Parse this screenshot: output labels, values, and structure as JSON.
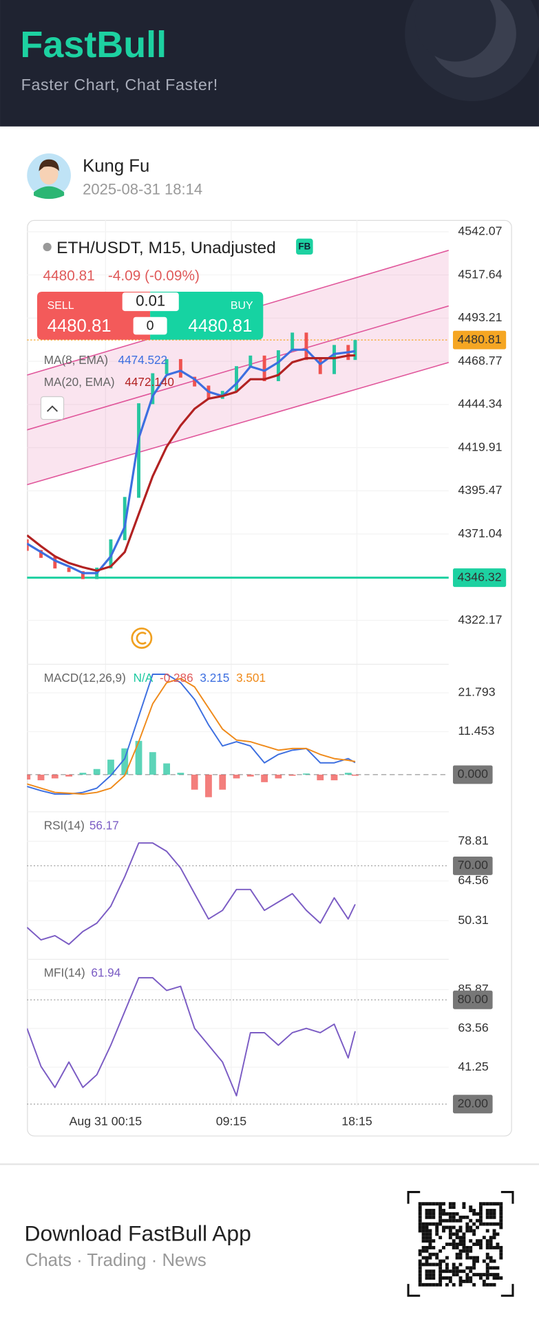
{
  "header": {
    "brand": "FastBull",
    "tagline": "Faster Chart, Chat Faster!"
  },
  "post": {
    "author": "Kung Fu",
    "time": "2025-08-31 18:14"
  },
  "time_axis": {
    "x": [
      0,
      4,
      8,
      12,
      16,
      20,
      24,
      28,
      32,
      36,
      40,
      44,
      48,
      52,
      56,
      60,
      64,
      68,
      72,
      76,
      80,
      84,
      88,
      92,
      94
    ],
    "xlim": [
      0,
      120.8
    ],
    "xticks": [
      {
        "value": 22.5,
        "label": "Aug 31 00:15"
      },
      {
        "value": 58.5,
        "label": "09:15"
      },
      {
        "value": 94.5,
        "label": "18:15"
      }
    ]
  },
  "chart_data": [
    {
      "type": "candlestick",
      "title": "ETH/USDT, M15, Unadjusted",
      "badge": "FB",
      "last_price": 4480.81,
      "change": "-4.09 (-0.09%)",
      "trade": {
        "sell_label": "SELL",
        "sell_price": 4480.81,
        "buy_label": "BUY",
        "buy_price": 4480.81,
        "lot": 0.01,
        "qty": 0
      },
      "up_color": "#26c6a0",
      "down_color": "#ef5350",
      "open": [
        4368,
        4362,
        4358,
        4352,
        4350,
        4346,
        4352,
        4368,
        4392,
        4445,
        4462,
        4470,
        4460,
        4455,
        4448,
        4452,
        4466,
        4472,
        4458,
        4475,
        4485,
        4470,
        4462,
        4478,
        4470
      ],
      "close": [
        4362,
        4358,
        4352,
        4350,
        4346,
        4352,
        4368,
        4392,
        4445,
        4462,
        4470,
        4460,
        4455,
        4448,
        4452,
        4466,
        4472,
        4458,
        4475,
        4485,
        4470,
        4462,
        4478,
        4470,
        4480.81
      ],
      "series": [
        {
          "name": "MA(8, EMA)",
          "legend_value": "4474.522",
          "color": "#3d6fe0",
          "values": [
            4365.6,
            4360.8,
            4356.0,
            4352.7,
            4348.9,
            4348.9,
            4358.4,
            4375.1,
            4425.2,
            4449.1,
            4461.0,
            4463.4,
            4458.6,
            4451.5,
            4449.1,
            4456.2,
            4465.8,
            4463.4,
            4468.2,
            4475.3,
            4475.3,
            4467.2,
            4472.9,
            4473.9,
            4474.5
          ]
        },
        {
          "name": "MA(20, EMA)",
          "legend_value": "4472.140",
          "color": "#b22222",
          "values": [
            4370.3,
            4364.1,
            4358.4,
            4354.6,
            4352.2,
            4350.3,
            4352.7,
            4360.8,
            4382.3,
            4403.7,
            4420.4,
            4432.4,
            4441.9,
            4447.6,
            4449.1,
            4451.5,
            4458.6,
            4458.6,
            4461.0,
            4468.2,
            4470.5,
            4470.5,
            4470.5,
            4472.0,
            4472.1
          ]
        }
      ],
      "channel": {
        "color": "#e0559a",
        "lines": [
          [
            4460.96,
            4531.57
          ],
          [
            4429.95,
            4500.08
          ],
          [
            4398.93,
            4468.1
          ]
        ]
      },
      "current_price": 4480.81,
      "current_color": "#f5a623",
      "level": 4346.32,
      "level_color": "#1dd1a1",
      "ylim": [
        4297.3,
        4548.7
      ],
      "yticks": [
        4542.07,
        4517.64,
        4493.21,
        4468.77,
        4444.34,
        4419.91,
        4395.47,
        4371.04,
        4322.17
      ]
    },
    {
      "type": "macd",
      "title": "MACD(12,26,9)",
      "legend": [
        {
          "text": "N/A",
          "color": "#1dc9a0"
        },
        {
          "text": "-0.286",
          "color": "#e05a5a"
        },
        {
          "text": "3.215",
          "color": "#3d6fe0"
        },
        {
          "text": "3.501",
          "color": "#ef8a1a"
        }
      ],
      "up_color": "#26c6a0",
      "down_color": "#ef5350",
      "histogram": [
        -1.3,
        -1.5,
        -1.0,
        -0.5,
        0.5,
        1.5,
        4,
        7,
        9,
        6,
        3,
        0.5,
        -4,
        -6,
        -4,
        -1,
        -0.5,
        -2,
        -1,
        -0.3,
        0.3,
        -1.5,
        -1.5,
        0.5,
        -0.286
      ],
      "series": [
        {
          "color": "#3d6fe0",
          "values": [
            -3.15,
            -4.27,
            -5.17,
            -5.17,
            -4.72,
            -3.6,
            -0.22,
            4.27,
            15.51,
            26.75,
            26.75,
            24.5,
            20.01,
            13.26,
            7.64,
            8.77,
            7.64,
            3.15,
            5.39,
            6.52,
            6.97,
            3.15,
            3.15,
            4.27,
            3.215
          ]
        },
        {
          "color": "#ef8a1a",
          "values": [
            -2.47,
            -3.6,
            -4.72,
            -4.94,
            -5.17,
            -4.72,
            -3.6,
            -0.22,
            8.77,
            18.88,
            24.5,
            25.62,
            23.38,
            17.76,
            12.14,
            9.22,
            8.77,
            7.64,
            6.52,
            6.97,
            6.97,
            5.39,
            4.27,
            3.82,
            3.501
          ]
        }
      ],
      "ylim": [
        -9.9,
        29.4
      ],
      "yticks": [
        21.793,
        11.453
      ],
      "ref_lines": [
        {
          "value": 0,
          "label": "0.000"
        }
      ]
    },
    {
      "type": "line",
      "title": "RSI(14)",
      "legend_value": "56.17",
      "series": [
        {
          "color": "#7b5cc4",
          "values": [
            47.9,
            43.4,
            44.9,
            41.8,
            46.4,
            49.4,
            55.5,
            66.1,
            78.2,
            78.2,
            75.2,
            69.2,
            60.0,
            50.9,
            54.0,
            61.5,
            61.5,
            54.0,
            57.0,
            60.0,
            54.0,
            49.4,
            58.5,
            50.9,
            56.17
          ]
        }
      ],
      "ylim": [
        36.4,
        89.4
      ],
      "yticks": [
        78.81,
        64.56,
        50.31
      ],
      "ref_lines": [
        {
          "value": 70,
          "label": "70.00"
        }
      ]
    },
    {
      "type": "line",
      "title": "MFI(14)",
      "legend_value": "61.94",
      "series": [
        {
          "color": "#7b5cc4",
          "values": [
            63.6,
            41.7,
            29.6,
            44.2,
            29.6,
            36.9,
            53.9,
            73.3,
            92.7,
            92.7,
            85.4,
            87.8,
            63.6,
            53.9,
            44.2,
            24.8,
            61.1,
            61.1,
            53.9,
            61.1,
            63.6,
            61.1,
            66.0,
            46.6,
            61.94
          ]
        }
      ],
      "ylim": [
        18.9,
        103.3
      ],
      "yticks": [
        85.87,
        63.56,
        41.25
      ],
      "ref_lines": [
        {
          "value": 80,
          "label": "80.00"
        },
        {
          "value": 20,
          "label": "20.00"
        }
      ]
    }
  ],
  "footer": {
    "title": "Download FastBull App",
    "subtitle": "Chats · Trading · News"
  }
}
